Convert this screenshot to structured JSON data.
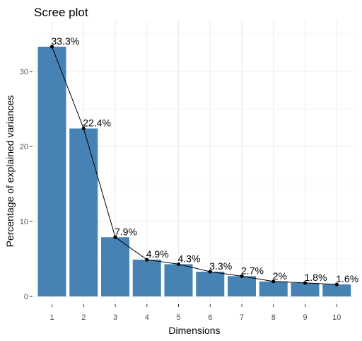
{
  "chart_data": {
    "type": "bar",
    "title": "Scree plot",
    "xlabel": "Dimensions",
    "ylabel": "Percentage of explained variances",
    "categories": [
      "1",
      "2",
      "3",
      "4",
      "5",
      "6",
      "7",
      "8",
      "9",
      "10"
    ],
    "values": [
      33.3,
      22.4,
      7.9,
      4.9,
      4.3,
      3.3,
      2.7,
      2.0,
      1.8,
      1.6
    ],
    "data_labels": [
      "33.3%",
      "22.4%",
      "7.9%",
      "4.9%",
      "4.3%",
      "3.3%",
      "2.7%",
      "2%",
      "1.8%",
      "1.6%"
    ],
    "ylim": [
      0,
      36
    ],
    "yticks": [
      0,
      10,
      20,
      30
    ],
    "overlay": "line-with-points",
    "grid": true,
    "legend": "none",
    "colors": {
      "bar": "#4682b4",
      "line": "#000000",
      "grid": "#ebebeb",
      "background": "#ffffff"
    }
  }
}
